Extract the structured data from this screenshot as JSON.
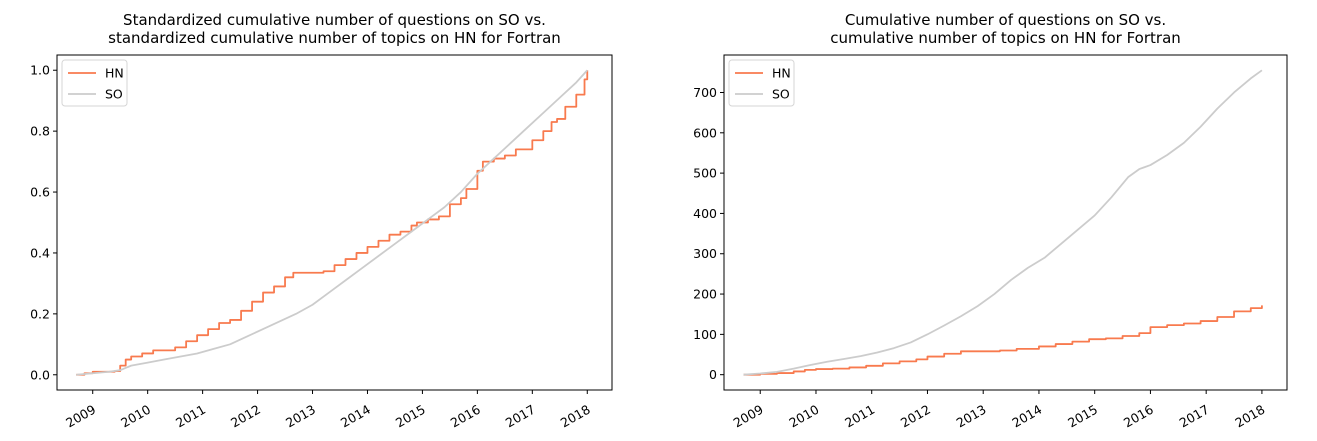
{
  "colors": {
    "hn": "#f87a4e",
    "so": "#cccccc"
  },
  "chart_data": [
    {
      "type": "line",
      "title": "Standardized cumulative number of questions on SO vs.\nstandardized cumulative number of topics on HN for Fortran",
      "xlabel": "",
      "ylabel": "",
      "xlim": [
        2008.35,
        2018.45
      ],
      "ylim": [
        -0.05,
        1.05
      ],
      "xticks": [
        2009,
        2010,
        2011,
        2012,
        2013,
        2014,
        2015,
        2016,
        2017,
        2018
      ],
      "xtick_labels": [
        "2009",
        "2010",
        "2011",
        "2012",
        "2013",
        "2014",
        "2015",
        "2016",
        "2017",
        "2018"
      ],
      "yticks": [
        0.0,
        0.2,
        0.4,
        0.6,
        0.8,
        1.0
      ],
      "ytick_labels": [
        "0.0",
        "0.2",
        "0.4",
        "0.6",
        "0.8",
        "1.0"
      ],
      "legend_position": "top-left",
      "grid": false,
      "series": [
        {
          "name": "HN",
          "color": "#f87a4e",
          "step": true,
          "x": [
            2008.7,
            2008.85,
            2009.0,
            2009.2,
            2009.4,
            2009.5,
            2009.6,
            2009.7,
            2009.9,
            2010.1,
            2010.2,
            2010.5,
            2010.7,
            2010.9,
            2011.1,
            2011.3,
            2011.5,
            2011.7,
            2011.9,
            2012.1,
            2012.3,
            2012.5,
            2012.65,
            2012.8,
            2013.0,
            2013.2,
            2013.4,
            2013.6,
            2013.8,
            2014.0,
            2014.2,
            2014.4,
            2014.6,
            2014.8,
            2014.9,
            2015.1,
            2015.2,
            2015.3,
            2015.5,
            2015.7,
            2015.8,
            2016.0,
            2016.1,
            2016.3,
            2016.5,
            2016.7,
            2016.85,
            2017.0,
            2017.2,
            2017.35,
            2017.45,
            2017.6,
            2017.8,
            2017.95,
            2018.0
          ],
          "y": [
            0.0,
            0.005,
            0.01,
            0.01,
            0.012,
            0.03,
            0.05,
            0.06,
            0.07,
            0.08,
            0.08,
            0.09,
            0.11,
            0.13,
            0.15,
            0.17,
            0.18,
            0.21,
            0.24,
            0.27,
            0.29,
            0.32,
            0.335,
            0.335,
            0.335,
            0.34,
            0.36,
            0.38,
            0.4,
            0.42,
            0.44,
            0.46,
            0.47,
            0.49,
            0.5,
            0.51,
            0.51,
            0.52,
            0.56,
            0.58,
            0.61,
            0.67,
            0.7,
            0.71,
            0.72,
            0.74,
            0.74,
            0.77,
            0.8,
            0.83,
            0.84,
            0.88,
            0.92,
            0.97,
            1.0
          ]
        },
        {
          "name": "SO",
          "color": "#cccccc",
          "step": false,
          "x": [
            2008.7,
            2009.0,
            2009.3,
            2009.5,
            2009.7,
            2010.0,
            2010.3,
            2010.6,
            2010.9,
            2011.2,
            2011.5,
            2011.8,
            2012.1,
            2012.4,
            2012.7,
            2013.0,
            2013.3,
            2013.6,
            2013.9,
            2014.2,
            2014.5,
            2014.8,
            2015.1,
            2015.4,
            2015.7,
            2016.0,
            2016.3,
            2016.6,
            2016.9,
            2017.2,
            2017.5,
            2017.8,
            2018.0
          ],
          "y": [
            0.0,
            0.005,
            0.01,
            0.015,
            0.03,
            0.04,
            0.05,
            0.06,
            0.07,
            0.085,
            0.1,
            0.125,
            0.15,
            0.175,
            0.2,
            0.23,
            0.27,
            0.31,
            0.35,
            0.39,
            0.43,
            0.47,
            0.51,
            0.55,
            0.6,
            0.66,
            0.71,
            0.76,
            0.81,
            0.86,
            0.91,
            0.96,
            1.0
          ]
        }
      ]
    },
    {
      "type": "line",
      "title": "Cumulative number of questions on SO vs.\ncumulative number of topics on HN for Fortran",
      "xlabel": "",
      "ylabel": "",
      "xlim": [
        2008.35,
        2018.45
      ],
      "ylim": [
        -38,
        793
      ],
      "xticks": [
        2009,
        2010,
        2011,
        2012,
        2013,
        2014,
        2015,
        2016,
        2017,
        2018
      ],
      "xtick_labels": [
        "2009",
        "2010",
        "2011",
        "2012",
        "2013",
        "2014",
        "2015",
        "2016",
        "2017",
        "2018"
      ],
      "yticks": [
        0,
        100,
        200,
        300,
        400,
        500,
        600,
        700
      ],
      "ytick_labels": [
        "0",
        "100",
        "200",
        "300",
        "400",
        "500",
        "600",
        "700"
      ],
      "legend_position": "top-left",
      "grid": false,
      "series": [
        {
          "name": "HN",
          "color": "#f87a4e",
          "step": true,
          "x": [
            2008.7,
            2009.0,
            2009.3,
            2009.6,
            2009.8,
            2010.0,
            2010.3,
            2010.6,
            2010.9,
            2011.2,
            2011.5,
            2011.8,
            2012.0,
            2012.3,
            2012.6,
            2013.0,
            2013.3,
            2013.6,
            2014.0,
            2014.3,
            2014.6,
            2014.9,
            2015.2,
            2015.5,
            2015.8,
            2016.0,
            2016.3,
            2016.6,
            2016.9,
            2017.2,
            2017.5,
            2017.8,
            2018.0
          ],
          "y": [
            0,
            2,
            4,
            8,
            12,
            14,
            15,
            18,
            22,
            28,
            33,
            38,
            45,
            52,
            58,
            58,
            60,
            64,
            70,
            76,
            82,
            88,
            90,
            96,
            103,
            118,
            123,
            127,
            133,
            143,
            157,
            165,
            172
          ]
        },
        {
          "name": "SO",
          "color": "#cccccc",
          "step": false,
          "x": [
            2008.7,
            2009.0,
            2009.3,
            2009.6,
            2009.9,
            2010.2,
            2010.5,
            2010.8,
            2011.1,
            2011.4,
            2011.7,
            2012.0,
            2012.3,
            2012.6,
            2012.9,
            2013.2,
            2013.5,
            2013.8,
            2014.1,
            2014.4,
            2014.7,
            2015.0,
            2015.3,
            2015.6,
            2015.8,
            2016.0,
            2016.3,
            2016.6,
            2016.9,
            2017.2,
            2017.5,
            2017.8,
            2018.0
          ],
          "y": [
            0,
            3,
            7,
            15,
            24,
            32,
            39,
            46,
            55,
            66,
            80,
            100,
            122,
            145,
            170,
            200,
            235,
            265,
            290,
            325,
            360,
            395,
            440,
            490,
            510,
            520,
            545,
            575,
            615,
            660,
            700,
            735,
            755
          ]
        }
      ]
    }
  ]
}
